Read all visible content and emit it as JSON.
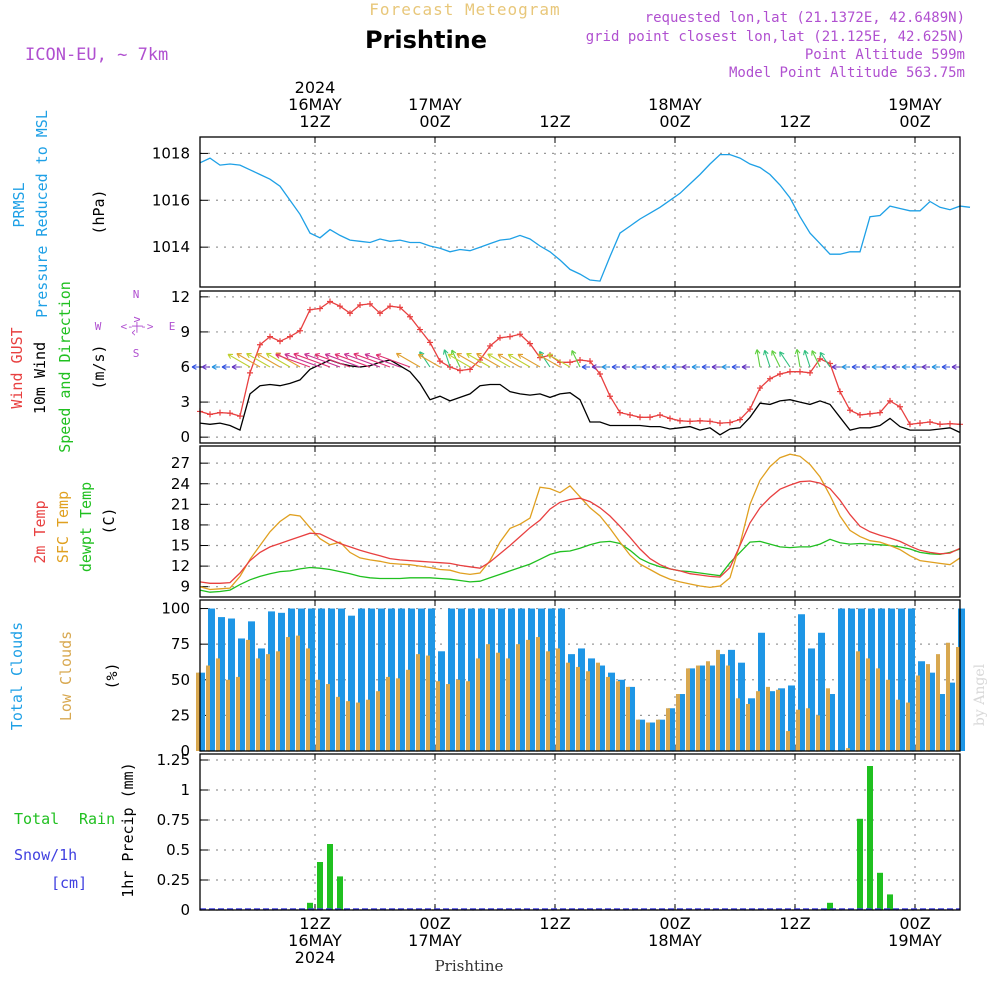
{
  "header": {
    "meteogram_title": "Forecast Meteogram",
    "location": "Prishtine",
    "model": "ICON-EU, ~ 7km",
    "requested": "requested lon,lat (21.1372E, 42.6489N)",
    "grid_point": "grid point closest lon,lat (21.125E, 42.625N)",
    "point_altitude": "Point Altitude 599m",
    "model_altitude": "Model Point Altitude 563.75m",
    "footer_location": "Prishtine",
    "watermark": "by Angel",
    "colors": {
      "title": "#e8c77a",
      "meta": "#b050d0",
      "pressure": "#1ea0e6",
      "gust": "#e84040",
      "wind": "#000000",
      "temp": "#e84040",
      "sfc": "#e0a020",
      "dew": "#20c020",
      "total_cloud": "#1e96e6",
      "low_cloud": "#d8a850",
      "rain": "#20c020",
      "snow": "#4040e0"
    }
  },
  "time_axis": {
    "top": [
      {
        "t": 11.5,
        "lines": [
          "2024",
          "16MAY",
          "12Z"
        ]
      },
      {
        "t": 23.5,
        "lines": [
          "17MAY",
          "00Z"
        ]
      },
      {
        "t": 35.5,
        "lines": [
          "12Z"
        ]
      },
      {
        "t": 47.5,
        "lines": [
          "18MAY",
          "00Z"
        ]
      },
      {
        "t": 59.5,
        "lines": [
          "12Z"
        ]
      },
      {
        "t": 71.5,
        "lines": [
          "19MAY",
          "00Z"
        ]
      }
    ],
    "bottom": [
      {
        "t": 11.5,
        "lines": [
          "12Z",
          "16MAY",
          "2024"
        ]
      },
      {
        "t": 23.5,
        "lines": [
          "00Z",
          "17MAY"
        ]
      },
      {
        "t": 35.5,
        "lines": [
          "12Z"
        ]
      },
      {
        "t": 47.5,
        "lines": [
          "00Z",
          "18MAY"
        ]
      },
      {
        "t": 59.5,
        "lines": [
          "12Z"
        ]
      },
      {
        "t": 71.5,
        "lines": [
          "00Z",
          "19MAY"
        ]
      }
    ]
  },
  "panel_labels": {
    "pressure": {
      "name1": "PRMSL",
      "name2": "Pressure Reduced to MSL",
      "unit": "(hPa)"
    },
    "wind": {
      "gust": "Wind GUST",
      "wind": "10m Wind",
      "dir": "Speed and Direction",
      "unit": "(m/s)",
      "compass": {
        "n": "N",
        "s": "S",
        "w": "W",
        "e": "E",
        "ns": "^|v",
        "ew": "<-|->"
      }
    },
    "temp": {
      "t2m": "2m Temp",
      "sfc": "SFC Temp",
      "dew": "dewpt Temp",
      "unit": "(C)"
    },
    "cloud": {
      "total": "Total Clouds",
      "low": "Low Clouds",
      "unit": "(%)"
    },
    "precip": {
      "total": "Total",
      "rain": "Rain",
      "snow": "Snow/1h",
      "cm": "[cm]",
      "unit": "1hr Precip (mm)"
    }
  },
  "chart_data": [
    {
      "type": "line",
      "name": "pressure",
      "ylim": [
        1012.3,
        1018.7
      ],
      "yticks": [
        1014,
        1016,
        1018
      ],
      "ytick_labels": [
        "1014",
        "1016",
        "1018"
      ],
      "x_range": [
        0,
        76
      ],
      "series": [
        {
          "name": "PRMSL",
          "values": [
            1017.6,
            1017.8,
            1017.5,
            1017.55,
            1017.5,
            1017.3,
            1017.1,
            1016.9,
            1016.6,
            1016.0,
            1015.4,
            1014.6,
            1014.4,
            1014.75,
            1014.5,
            1014.3,
            1014.25,
            1014.2,
            1014.35,
            1014.25,
            1014.3,
            1014.2,
            1014.2,
            1014.05,
            1013.95,
            1013.8,
            1013.9,
            1013.85,
            1014.0,
            1014.15,
            1014.3,
            1014.35,
            1014.5,
            1014.35,
            1014.05,
            1013.8,
            1013.45,
            1013.05,
            1012.85,
            1012.6,
            1012.55,
            1013.6,
            1014.6,
            1014.9,
            1015.2,
            1015.45,
            1015.7,
            1016.0,
            1016.3,
            1016.7,
            1017.1,
            1017.55,
            1017.95,
            1017.95,
            1017.8,
            1017.55,
            1017.4,
            1017.1,
            1016.65,
            1016.1,
            1015.3,
            1014.6,
            1014.15,
            1013.7,
            1013.7,
            1013.8,
            1013.8,
            1015.3,
            1015.35,
            1015.75,
            1015.65,
            1015.55,
            1015.55,
            1015.95,
            1015.7,
            1015.6,
            1015.75,
            1015.7
          ]
        }
      ]
    },
    {
      "type": "line",
      "name": "wind",
      "ylim": [
        -0.5,
        12.5
      ],
      "yticks": [
        0,
        3,
        6,
        9,
        12
      ],
      "ytick_labels": [
        "0",
        "3",
        "6",
        "9",
        "12"
      ],
      "x_range": [
        0,
        76
      ],
      "series": [
        {
          "name": "Wind GUST",
          "values": [
            2.2,
            1.95,
            2.1,
            2.05,
            1.8,
            5.5,
            7.9,
            8.6,
            8.2,
            8.6,
            9.1,
            10.9,
            11.0,
            11.6,
            11.2,
            10.6,
            11.3,
            11.4,
            10.6,
            11.2,
            11.1,
            10.3,
            9.2,
            8.1,
            6.5,
            6.0,
            5.7,
            5.8,
            6.6,
            7.8,
            8.5,
            8.6,
            8.8,
            8.0,
            6.8,
            7.0,
            6.4,
            6.4,
            6.6,
            6.5,
            5.4,
            3.5,
            2.1,
            1.9,
            1.7,
            1.7,
            1.9,
            1.6,
            1.4,
            1.35,
            1.4,
            1.35,
            1.2,
            1.25,
            1.5,
            2.4,
            4.2,
            5.0,
            5.4,
            5.6,
            5.6,
            5.5,
            6.7,
            6.3,
            3.9,
            2.3,
            1.9,
            2.0,
            2.1,
            3.1,
            2.6,
            1.1,
            1.2,
            1.3,
            1.1,
            1.15,
            1.1
          ]
        },
        {
          "name": "10m Wind",
          "values": [
            1.2,
            1.1,
            1.2,
            1.0,
            0.6,
            3.7,
            4.4,
            4.5,
            4.4,
            4.6,
            4.9,
            5.8,
            6.2,
            6.6,
            6.3,
            6.1,
            6.0,
            6.1,
            6.4,
            6.6,
            6.1,
            5.6,
            4.6,
            3.2,
            3.5,
            3.1,
            3.4,
            3.7,
            4.4,
            4.5,
            4.5,
            3.9,
            3.7,
            3.6,
            3.7,
            3.4,
            3.7,
            3.8,
            3.2,
            1.3,
            1.3,
            1.0,
            1.0,
            1.0,
            1.0,
            0.9,
            0.9,
            0.7,
            0.8,
            0.9,
            0.6,
            0.8,
            0.2,
            0.7,
            0.8,
            1.7,
            2.9,
            2.8,
            3.1,
            3.2,
            3.0,
            2.8,
            3.1,
            2.8,
            1.7,
            0.6,
            0.8,
            0.8,
            1.0,
            1.6,
            0.9,
            0.6,
            0.6,
            0.6,
            0.7,
            0.8,
            0.4
          ]
        }
      ],
      "arrows": {
        "speed_axis_value": 6,
        "count": 77
      }
    },
    {
      "type": "line",
      "name": "temperature",
      "ylim": [
        7.5,
        29.5
      ],
      "yticks": [
        9,
        12,
        15,
        18,
        21,
        24,
        27
      ],
      "ytick_labels": [
        "9",
        "12",
        "15",
        "18",
        "21",
        "24",
        "27"
      ],
      "x_range": [
        0,
        76
      ],
      "series": [
        {
          "name": "2m Temp",
          "values": [
            9.7,
            9.5,
            9.5,
            9.6,
            11.0,
            12.8,
            14.0,
            14.8,
            15.3,
            15.8,
            16.3,
            16.8,
            16.7,
            16.0,
            15.3,
            14.8,
            14.3,
            13.9,
            13.5,
            13.1,
            12.9,
            12.8,
            12.7,
            12.6,
            12.5,
            12.4,
            12.1,
            11.9,
            11.7,
            12.6,
            13.8,
            15.0,
            16.3,
            17.6,
            18.7,
            20.3,
            21.3,
            21.7,
            21.9,
            21.4,
            20.5,
            19.3,
            17.8,
            16.2,
            14.5,
            13.1,
            12.2,
            11.6,
            11.3,
            10.9,
            10.7,
            10.5,
            10.4,
            11.8,
            15.0,
            18.3,
            20.5,
            22.0,
            23.2,
            23.8,
            24.3,
            24.4,
            24.1,
            23.3,
            21.6,
            19.5,
            17.8,
            17.0,
            16.5,
            16.1,
            15.6,
            14.9,
            14.3,
            14.0,
            13.8,
            13.9,
            14.6
          ]
        },
        {
          "name": "SFC Temp",
          "values": [
            9.0,
            8.6,
            8.7,
            8.8,
            10.5,
            13.0,
            15.0,
            17.0,
            18.5,
            19.5,
            19.3,
            17.6,
            16.0,
            15.1,
            15.5,
            14.0,
            13.2,
            12.9,
            12.7,
            12.4,
            12.3,
            12.2,
            12.0,
            11.8,
            11.5,
            11.4,
            11.0,
            10.8,
            11.0,
            12.8,
            15.5,
            17.5,
            18.1,
            19.0,
            23.5,
            23.3,
            22.7,
            23.7,
            22.1,
            20.5,
            19.3,
            17.5,
            15.5,
            13.6,
            12.3,
            11.5,
            10.7,
            10.1,
            9.7,
            9.4,
            9.1,
            8.9,
            9.1,
            10.3,
            15.2,
            21.0,
            24.5,
            26.5,
            27.8,
            28.3,
            28.0,
            26.8,
            25.0,
            22.3,
            19.3,
            17.2,
            16.3,
            15.7,
            15.5,
            15.0,
            14.4,
            13.5,
            12.8,
            12.6,
            12.4,
            12.2,
            13.2
          ]
        },
        {
          "name": "dewpt Temp",
          "values": [
            8.5,
            8.2,
            8.3,
            8.5,
            9.3,
            10.0,
            10.5,
            10.9,
            11.2,
            11.3,
            11.6,
            11.8,
            11.7,
            11.5,
            11.2,
            10.9,
            10.5,
            10.3,
            10.2,
            10.2,
            10.2,
            10.3,
            10.3,
            10.3,
            10.2,
            10.1,
            9.9,
            9.7,
            9.8,
            10.3,
            10.8,
            11.3,
            11.8,
            12.3,
            13.0,
            13.7,
            14.1,
            14.2,
            14.6,
            15.1,
            15.5,
            15.6,
            15.3,
            14.3,
            13.1,
            12.4,
            11.9,
            11.6,
            11.3,
            11.2,
            11.0,
            10.8,
            10.6,
            12.5,
            14.0,
            15.5,
            15.6,
            15.2,
            14.8,
            14.7,
            14.8,
            14.8,
            15.2,
            15.9,
            15.4,
            15.2,
            15.3,
            15.2,
            15.1,
            15.0,
            14.8,
            14.5,
            14.0,
            13.8,
            13.7,
            14.0,
            14.5
          ]
        }
      ]
    },
    {
      "type": "bar",
      "name": "clouds",
      "ylim": [
        0,
        106
      ],
      "yticks": [
        0,
        25,
        50,
        75,
        100
      ],
      "ytick_labels": [
        "0",
        "25",
        "50",
        "75",
        "100"
      ],
      "x_range": [
        0,
        76
      ],
      "series": [
        {
          "name": "Total Clouds",
          "values": [
            55,
            100,
            94,
            93,
            79,
            91,
            72,
            98,
            97,
            100,
            100,
            100,
            100,
            100,
            100,
            95,
            100,
            100,
            100,
            100,
            100,
            100,
            100,
            100,
            70,
            100,
            100,
            100,
            100,
            100,
            100,
            100,
            100,
            100,
            100,
            100,
            100,
            68,
            72,
            65,
            60,
            55,
            50,
            45,
            22,
            20,
            22,
            30,
            40,
            58,
            60,
            60,
            68,
            71,
            62,
            37,
            83,
            42,
            44,
            46,
            96,
            72,
            83,
            40,
            100,
            100,
            100,
            100,
            100,
            100,
            100,
            100,
            63,
            55,
            40,
            48,
            100
          ]
        },
        {
          "name": "Low Clouds",
          "values": [
            55,
            60,
            65,
            50,
            52,
            78,
            65,
            68,
            70,
            80,
            81,
            72,
            50,
            47,
            38,
            35,
            34,
            36,
            42,
            52,
            51,
            57,
            68,
            67,
            49,
            47,
            50,
            49,
            65,
            75,
            69,
            65,
            75,
            78,
            80,
            70,
            72,
            62,
            59,
            56,
            62,
            52,
            49,
            45,
            22,
            20,
            22,
            30,
            40,
            58,
            60,
            63,
            71,
            60,
            37,
            33,
            42,
            45,
            43,
            14,
            29,
            30,
            25,
            44,
            0,
            2,
            70,
            65,
            58,
            50,
            36,
            34,
            53,
            61,
            68,
            76,
            73
          ]
        }
      ]
    },
    {
      "type": "bar",
      "name": "precipitation",
      "ylim": [
        0,
        1.3
      ],
      "yticks": [
        0,
        0.25,
        0.5,
        0.75,
        1,
        1.25
      ],
      "ytick_labels": [
        "0",
        "0.25",
        "0.5",
        "0.75",
        "1",
        "1.25"
      ],
      "x_range": [
        0,
        76
      ],
      "series": [
        {
          "name": "Total Rain",
          "bars": [
            {
              "t": 11,
              "v": 0.06
            },
            {
              "t": 12,
              "v": 0.4
            },
            {
              "t": 13,
              "v": 0.55
            },
            {
              "t": 14,
              "v": 0.28
            },
            {
              "t": 63,
              "v": 0.06
            },
            {
              "t": 66,
              "v": 0.76
            },
            {
              "t": 67,
              "v": 1.2
            },
            {
              "t": 68,
              "v": 0.31
            },
            {
              "t": 69,
              "v": 0.13
            }
          ]
        }
      ]
    }
  ]
}
